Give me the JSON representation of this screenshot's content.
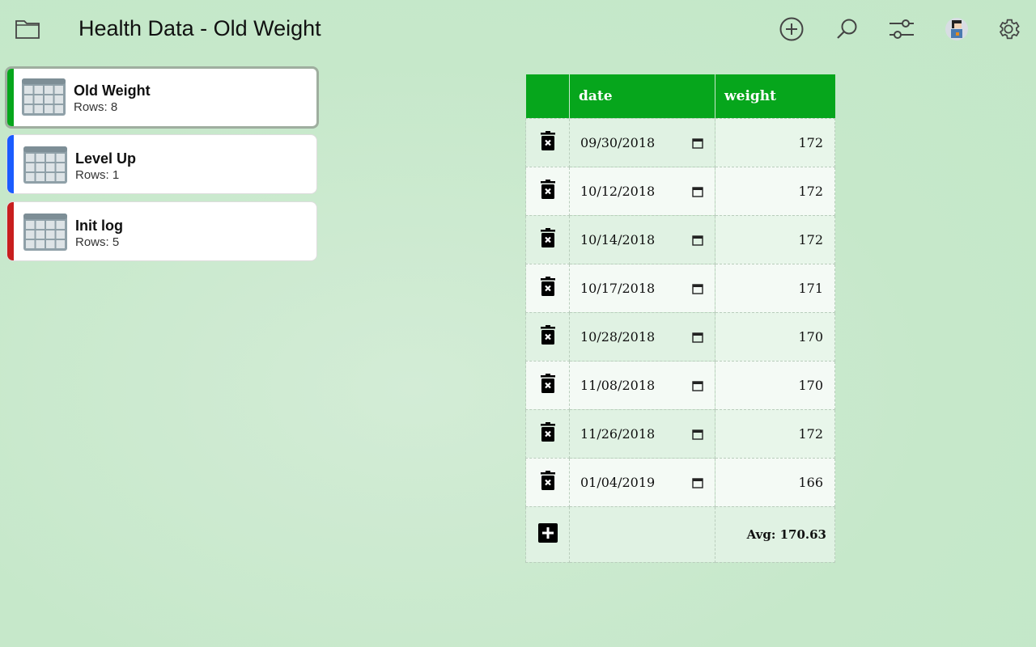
{
  "header": {
    "title": "Health Data - Old Weight",
    "icons": [
      "folder-icon",
      "add-circle-icon",
      "search-icon",
      "sliders-icon",
      "avatar",
      "gear-icon"
    ]
  },
  "sidebar": {
    "items": [
      {
        "name": "Old Weight",
        "rows": "Rows: 8",
        "color": "#06a61c",
        "selected": true
      },
      {
        "name": "Level Up",
        "rows": "Rows: 1",
        "color": "#1a5cff",
        "selected": false
      },
      {
        "name": "Init log",
        "rows": "Rows: 5",
        "color": "#c81e1e",
        "selected": false
      }
    ]
  },
  "table": {
    "columns": [
      "date",
      "weight"
    ],
    "rows": [
      {
        "date": "09/30/2018",
        "weight": "172"
      },
      {
        "date": "10/12/2018",
        "weight": "172"
      },
      {
        "date": "10/14/2018",
        "weight": "172"
      },
      {
        "date": "10/17/2018",
        "weight": "171"
      },
      {
        "date": "10/28/2018",
        "weight": "170"
      },
      {
        "date": "11/08/2018",
        "weight": "170"
      },
      {
        "date": "11/26/2018",
        "weight": "172"
      },
      {
        "date": "01/04/2019",
        "weight": "166"
      }
    ],
    "avg": "Avg: 170.63"
  },
  "colors": {
    "header_green": "#06a61c"
  }
}
